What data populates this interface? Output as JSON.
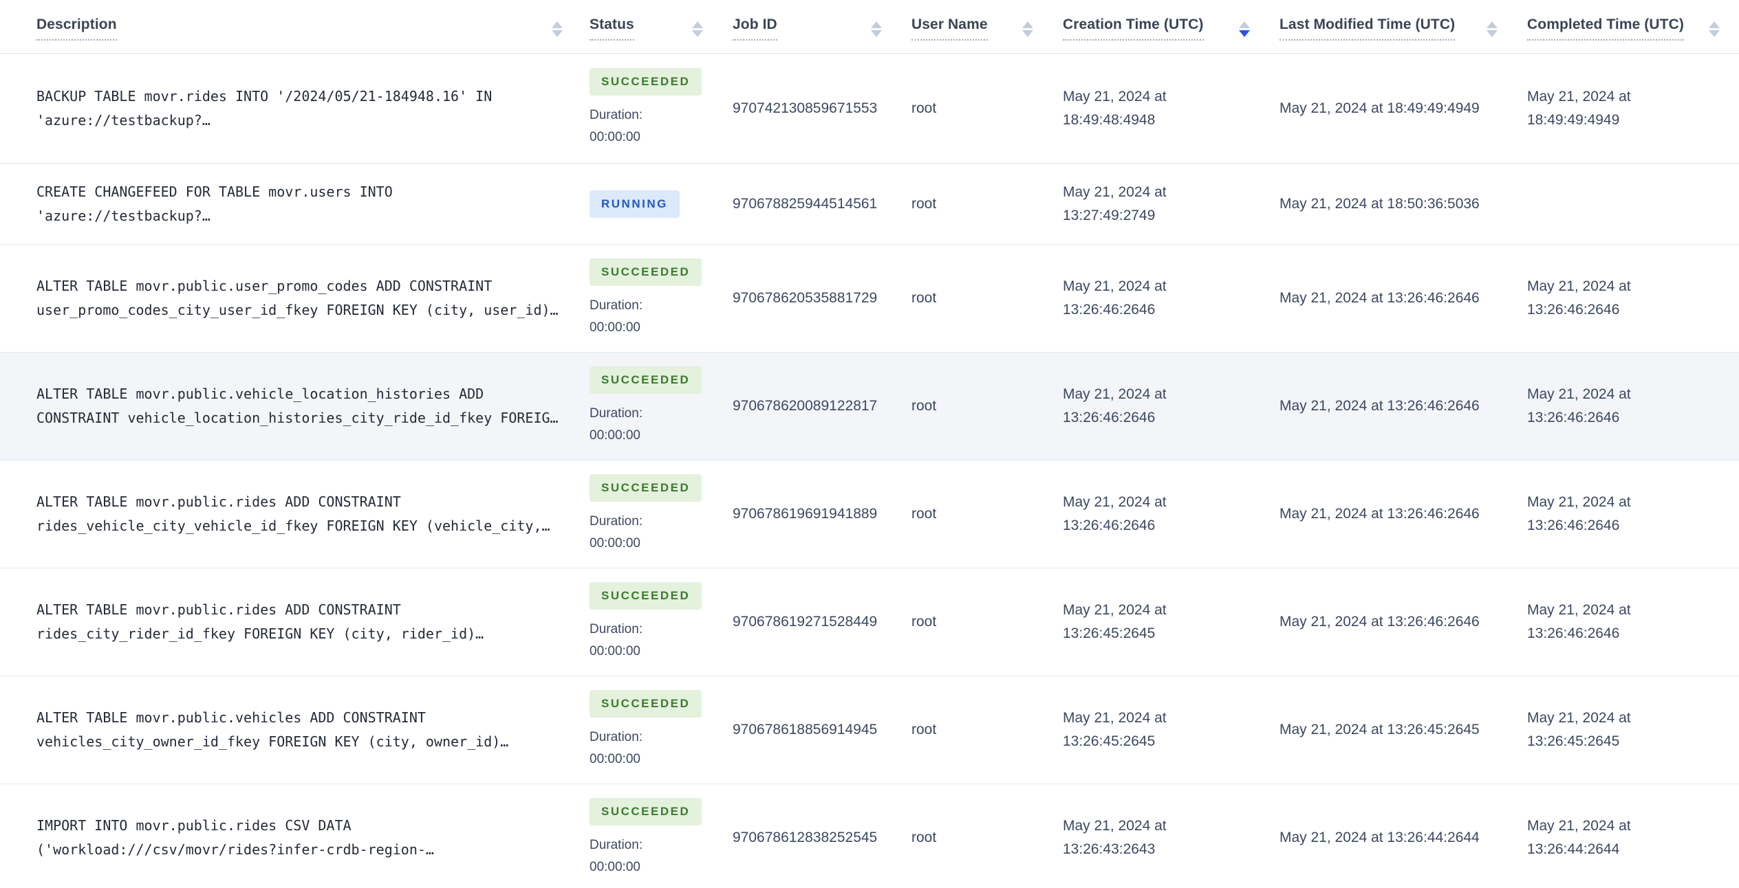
{
  "table": {
    "columns": [
      {
        "label": "Description",
        "sort": "none"
      },
      {
        "label": "Status",
        "sort": "none"
      },
      {
        "label": "Job ID",
        "sort": "none"
      },
      {
        "label": "User Name",
        "sort": "none"
      },
      {
        "label": "Creation Time (UTC)",
        "sort": "desc"
      },
      {
        "label": "Last Modified Time (UTC)",
        "sort": "none"
      },
      {
        "label": "Completed Time (UTC)",
        "sort": "none"
      }
    ],
    "rows": [
      {
        "d1": "BACKUP TABLE movr.rides INTO '/2024/05/21-184948.16' IN",
        "d2": "'azure://testbackup?…",
        "status": "SUCCEEDED",
        "duration_label": "Duration:",
        "duration_value": "00:00:00",
        "job_id": "970742130859671553",
        "user": "root",
        "created1": "May 21, 2024 at",
        "created2": "18:49:48:4948",
        "modified": "May 21, 2024 at 18:49:49:4949",
        "completed1": "May 21, 2024 at",
        "completed2": "18:49:49:4949"
      },
      {
        "d1": "CREATE CHANGEFEED FOR TABLE movr.users INTO",
        "d2": "'azure://testbackup?…",
        "status": "RUNNING",
        "duration_label": "",
        "duration_value": "",
        "job_id": "970678825944514561",
        "user": "root",
        "created1": "May 21, 2024 at",
        "created2": "13:27:49:2749",
        "modified": "May 21, 2024 at 18:50:36:5036",
        "completed1": "",
        "completed2": ""
      },
      {
        "d1": "ALTER TABLE movr.public.user_promo_codes ADD CONSTRAINT",
        "d2": "user_promo_codes_city_user_id_fkey FOREIGN KEY (city, user_id)…",
        "status": "SUCCEEDED",
        "duration_label": "Duration:",
        "duration_value": "00:00:00",
        "job_id": "970678620535881729",
        "user": "root",
        "created1": "May 21, 2024 at",
        "created2": "13:26:46:2646",
        "modified": "May 21, 2024 at 13:26:46:2646",
        "completed1": "May 21, 2024 at",
        "completed2": "13:26:46:2646"
      },
      {
        "d1": "ALTER TABLE movr.public.vehicle_location_histories ADD",
        "d2": "CONSTRAINT vehicle_location_histories_city_ride_id_fkey FOREIG…",
        "status": "SUCCEEDED",
        "duration_label": "Duration:",
        "duration_value": "00:00:00",
        "job_id": "970678620089122817",
        "user": "root",
        "created1": "May 21, 2024 at",
        "created2": "13:26:46:2646",
        "modified": "May 21, 2024 at 13:26:46:2646",
        "completed1": "May 21, 2024 at",
        "completed2": "13:26:46:2646"
      },
      {
        "d1": "ALTER TABLE movr.public.rides ADD CONSTRAINT",
        "d2": "rides_vehicle_city_vehicle_id_fkey FOREIGN KEY (vehicle_city,…",
        "status": "SUCCEEDED",
        "duration_label": "Duration:",
        "duration_value": "00:00:00",
        "job_id": "970678619691941889",
        "user": "root",
        "created1": "May 21, 2024 at",
        "created2": "13:26:46:2646",
        "modified": "May 21, 2024 at 13:26:46:2646",
        "completed1": "May 21, 2024 at",
        "completed2": "13:26:46:2646"
      },
      {
        "d1": "ALTER TABLE movr.public.rides ADD CONSTRAINT",
        "d2": "rides_city_rider_id_fkey FOREIGN KEY (city, rider_id)…",
        "status": "SUCCEEDED",
        "duration_label": "Duration:",
        "duration_value": "00:00:00",
        "job_id": "970678619271528449",
        "user": "root",
        "created1": "May 21, 2024 at",
        "created2": "13:26:45:2645",
        "modified": "May 21, 2024 at 13:26:46:2646",
        "completed1": "May 21, 2024 at",
        "completed2": "13:26:46:2646"
      },
      {
        "d1": "ALTER TABLE movr.public.vehicles ADD CONSTRAINT",
        "d2": "vehicles_city_owner_id_fkey FOREIGN KEY (city, owner_id)…",
        "status": "SUCCEEDED",
        "duration_label": "Duration:",
        "duration_value": "00:00:00",
        "job_id": "970678618856914945",
        "user": "root",
        "created1": "May 21, 2024 at",
        "created2": "13:26:45:2645",
        "modified": "May 21, 2024 at 13:26:45:2645",
        "completed1": "May 21, 2024 at",
        "completed2": "13:26:45:2645"
      },
      {
        "d1": "IMPORT INTO movr.public.rides CSV DATA",
        "d2": "('workload:///csv/movr/rides?infer-crdb-region-…",
        "status": "SUCCEEDED",
        "duration_label": "Duration:",
        "duration_value": "00:00:00",
        "job_id": "970678612838252545",
        "user": "root",
        "created1": "May 21, 2024 at",
        "created2": "13:26:43:2643",
        "modified": "May 21, 2024 at 13:26:44:2644",
        "completed1": "May 21, 2024 at",
        "completed2": "13:26:44:2644"
      }
    ]
  },
  "colors": {
    "succeeded_bg": "#e4f1dd",
    "succeeded_text": "#3a7b2d",
    "running_bg": "#dce9fb",
    "running_text": "#2059bd",
    "sort_active": "#2b55e6",
    "sort_inactive": "#c4cdde",
    "row_highlight": "#f3f5f9",
    "header_text": "#394455",
    "row_border": "#e2e7f0"
  }
}
